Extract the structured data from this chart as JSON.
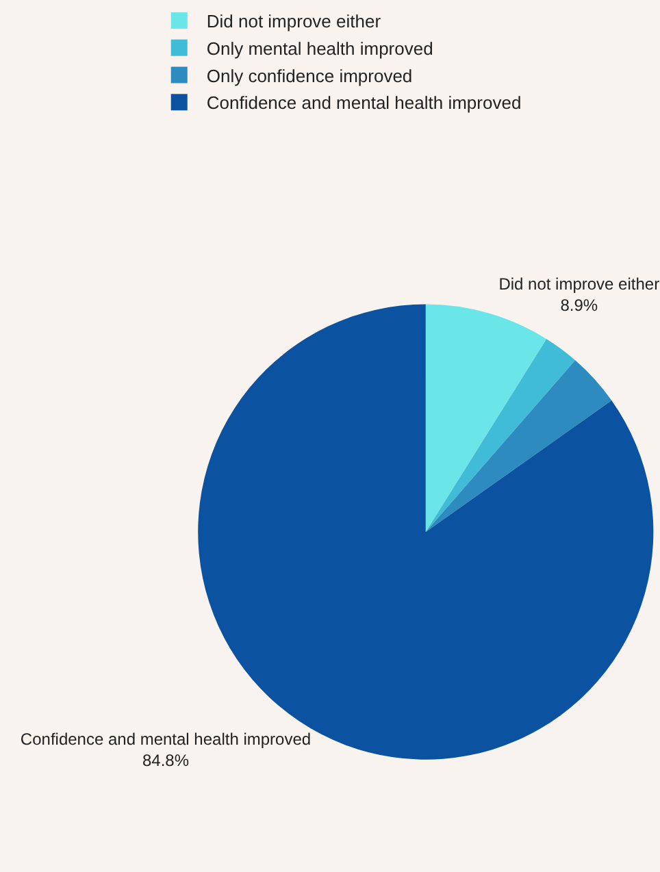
{
  "chart_data": {
    "type": "pie",
    "categories": [
      "Did not improve either",
      "Only mental health improved",
      "Only confidence improved",
      "Confidence and mental health improved"
    ],
    "values": [
      8.9,
      2.5,
      3.8,
      84.8
    ],
    "value_labels": [
      "8.9%",
      null,
      null,
      "84.8%"
    ],
    "colors": [
      "#6ae6e8",
      "#40bcd8",
      "#2e8bbf",
      "#0b52a0"
    ],
    "legend": "top"
  }
}
